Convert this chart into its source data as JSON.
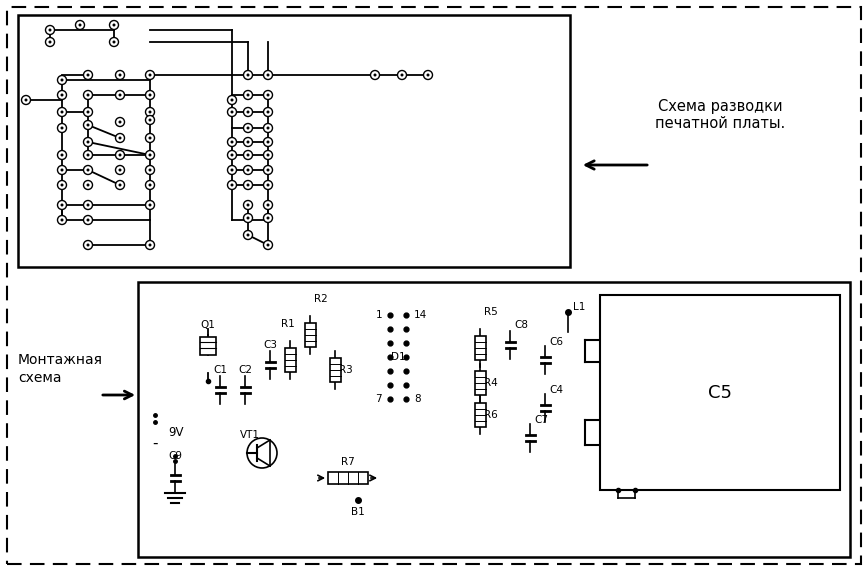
{
  "bg_color": "#ffffff",
  "text_schema": "Схема разводки\nпечатной платы.",
  "text_montazhnaya_1": "Монтажная",
  "text_montazhnaya_2": "схема",
  "text_9v": "9V",
  "font_size_label": 10,
  "font_size_comp": 7.5,
  "font_size_c5": 13
}
